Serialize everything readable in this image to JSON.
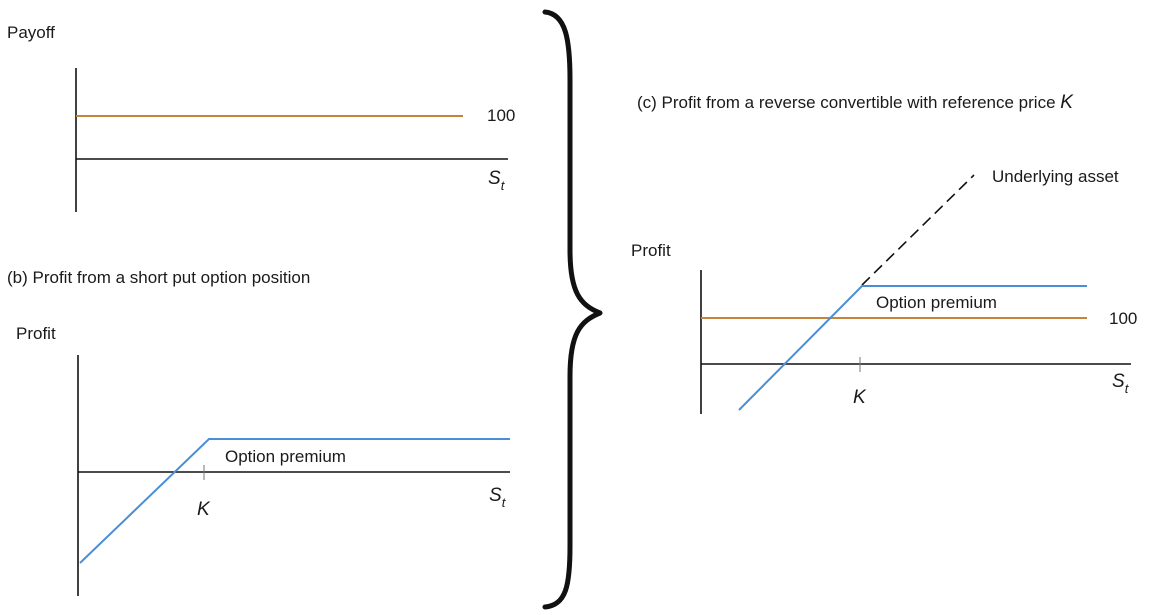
{
  "colors": {
    "axis": "#111111",
    "bond_line": "#c8823a",
    "profit_line": "#4a8fd6",
    "dashed_line": "#111111"
  },
  "panel_a": {
    "y_label": "Payoff",
    "level_label": "100",
    "x_label_main": "S",
    "x_label_sub": "t"
  },
  "panel_b": {
    "title": "(b)  Profit from a short put option position",
    "y_label": "Profit",
    "premium_label": "Option premium",
    "strike_label": "K",
    "x_label_main": "S",
    "x_label_sub": "t"
  },
  "panel_c": {
    "title_prefix": "(c) Profit from a reverse convertible with reference price ",
    "title_symbol": "K",
    "y_label": "Profit",
    "underlying_label": "Underlying asset",
    "premium_label": "Option premium",
    "level_label": "100",
    "strike_label": "K",
    "x_label_main": "S",
    "x_label_sub": "t"
  },
  "brace_icon": "right-curly-brace"
}
